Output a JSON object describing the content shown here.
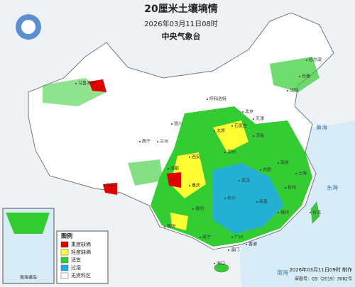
{
  "header": {
    "title": "20厘米土壤墒情",
    "time": "2026年03月11日08时",
    "issuer": "中央气象台"
  },
  "legend": {
    "title": "图例",
    "items": [
      {
        "label": "重度缺墒",
        "color": "#e00000"
      },
      {
        "label": "轻度缺墒",
        "color": "#ffff33"
      },
      {
        "label": "适宜",
        "color": "#33cc33"
      },
      {
        "label": "过湿",
        "color": "#22aaee"
      },
      {
        "label": "无资料区",
        "color": "#ffffff"
      }
    ]
  },
  "map": {
    "labels": [
      "哈尔滨",
      "长春",
      "沈阳",
      "北京",
      "天津",
      "石家庄",
      "太原",
      "济南",
      "呼和浩特",
      "银川",
      "兰州",
      "西宁",
      "乌鲁木齐",
      "拉萨",
      "西安",
      "郑州",
      "南京",
      "合肥",
      "上海",
      "杭州",
      "武汉",
      "成都",
      "重庆",
      "长沙",
      "南昌",
      "福州",
      "台北",
      "贵阳",
      "昆明",
      "南宁",
      "广州",
      "香港",
      "澳门",
      "海口",
      "黄海",
      "东海",
      "南海"
    ],
    "inset": "南海诸岛"
  },
  "footer": {
    "made": "2026年03月11日09时 制作",
    "approval": "审图号：GS（2019）3082号"
  }
}
